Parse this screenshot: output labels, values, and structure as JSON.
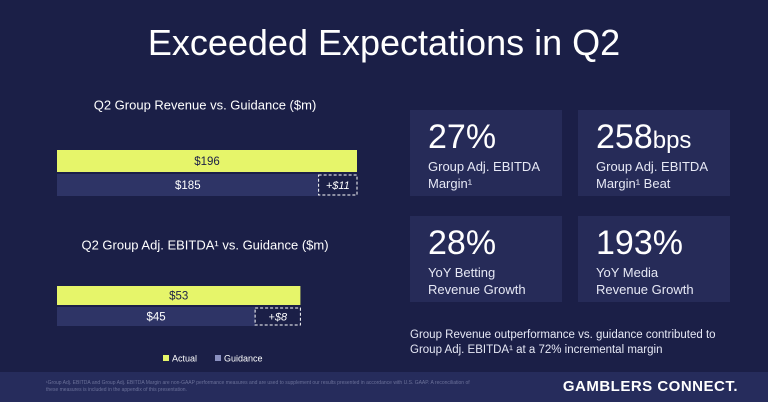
{
  "title": "Exceeded Expectations in Q2",
  "chart_data": [
    {
      "type": "bar",
      "title": "Q2 Group Revenue vs. Guidance ($m)",
      "values": [
        196,
        185
      ],
      "value_labels": [
        "$196",
        "$185"
      ],
      "annotation": "+$11",
      "xlim": [
        110,
        196
      ]
    },
    {
      "type": "bar",
      "title": "Q2 Group Adj. EBITDA¹ vs. Guidance ($m)",
      "values": [
        53,
        45
      ],
      "value_labels": [
        "$53",
        "$45"
      ],
      "annotation": "+$8",
      "xlim": [
        10,
        63
      ]
    }
  ],
  "legend": [
    {
      "name": "Actual",
      "color": "#e6f56a"
    },
    {
      "name": "Guidance",
      "color": "#2e3466"
    }
  ],
  "kpis": [
    {
      "value": "27%",
      "unit": "",
      "lines": [
        "Group Adj. EBITDA",
        "Margin¹"
      ]
    },
    {
      "value": "258",
      "unit": "bps",
      "lines": [
        "Group Adj. EBITDA",
        "Margin¹ Beat"
      ]
    },
    {
      "value": "28%",
      "unit": "",
      "lines": [
        "YoY Betting",
        "Revenue Growth"
      ]
    },
    {
      "value": "193%",
      "unit": "",
      "lines": [
        "YoY Media",
        "Revenue Growth"
      ]
    }
  ],
  "note": [
    "Group Revenue outperformance vs. guidance contributed to",
    "Group Adj. EBITDA¹ at a 72% incremental margin"
  ],
  "footnote": "¹Group Adj. EBITDA and Group Adj. EBITDA Margin are non-GAAP performance measures and are used to supplement our results presented in accordance with U.S. GAAP. A reconciliation of these measures is included in the appendix of this presentation.",
  "logo": "GAMBLERS CONNECT."
}
